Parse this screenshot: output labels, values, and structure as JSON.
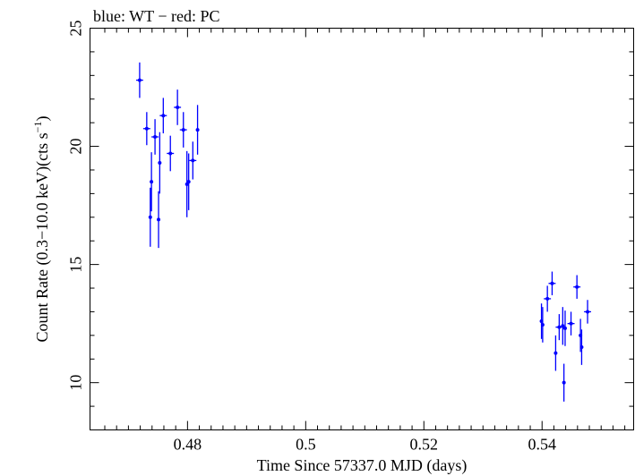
{
  "chart_data": {
    "type": "scatter",
    "title": "blue: WT − red: PC",
    "xlabel": "Time Since 57337.0 MJD (days)",
    "ylabel_main": "Count Rate (0.3−10.0 keV)(cts s",
    "ylabel_sup": "−1",
    "ylabel_end": ")",
    "xlim": [
      0.4635,
      0.5555
    ],
    "ylim": [
      8.0,
      25.0
    ],
    "xticks": [
      {
        "value": 0.48,
        "label": "0.48"
      },
      {
        "value": 0.5,
        "label": "0.5"
      },
      {
        "value": 0.52,
        "label": "0.52"
      },
      {
        "value": 0.54,
        "label": "0.54"
      }
    ],
    "yticks": [
      {
        "value": 10,
        "label": "10"
      },
      {
        "value": 15,
        "label": "15"
      },
      {
        "value": 20,
        "label": "20"
      },
      {
        "value": 25,
        "label": "25"
      }
    ],
    "grid": false,
    "series": [
      {
        "color": "#0000ff",
        "points": [
          {
            "x": 0.4719,
            "y": 22.8,
            "xerr": 0.0006,
            "yerr": 0.75
          },
          {
            "x": 0.4731,
            "y": 20.75,
            "xerr": 0.0006,
            "yerr": 0.7
          },
          {
            "x": 0.4737,
            "y": 17.0,
            "xerr": 0.0002,
            "yerr": 1.25
          },
          {
            "x": 0.4739,
            "y": 18.5,
            "xerr": 0.0002,
            "yerr": 1.25
          },
          {
            "x": 0.4745,
            "y": 20.4,
            "xerr": 0.0006,
            "yerr": 0.75
          },
          {
            "x": 0.4751,
            "y": 16.9,
            "xerr": 0.0002,
            "yerr": 1.2
          },
          {
            "x": 0.4753,
            "y": 19.3,
            "xerr": 0.0002,
            "yerr": 1.3
          },
          {
            "x": 0.4759,
            "y": 21.3,
            "xerr": 0.0006,
            "yerr": 0.75
          },
          {
            "x": 0.4771,
            "y": 19.7,
            "xerr": 0.0006,
            "yerr": 0.75
          },
          {
            "x": 0.4783,
            "y": 21.65,
            "xerr": 0.0006,
            "yerr": 0.75
          },
          {
            "x": 0.4793,
            "y": 20.7,
            "xerr": 0.0006,
            "yerr": 0.75
          },
          {
            "x": 0.4799,
            "y": 18.4,
            "xerr": 0.0002,
            "yerr": 1.4
          },
          {
            "x": 0.4802,
            "y": 18.5,
            "xerr": 0.0002,
            "yerr": 1.2
          },
          {
            "x": 0.4809,
            "y": 19.4,
            "xerr": 0.0006,
            "yerr": 0.8
          },
          {
            "x": 0.4817,
            "y": 20.7,
            "xerr": 0.0002,
            "yerr": 1.05
          },
          {
            "x": 0.5399,
            "y": 12.6,
            "xerr": 0.0002,
            "yerr": 0.75
          },
          {
            "x": 0.5401,
            "y": 12.45,
            "xerr": 0.0002,
            "yerr": 0.75
          },
          {
            "x": 0.5409,
            "y": 13.55,
            "xerr": 0.0006,
            "yerr": 0.55
          },
          {
            "x": 0.5417,
            "y": 14.2,
            "xerr": 0.0006,
            "yerr": 0.5
          },
          {
            "x": 0.5423,
            "y": 11.25,
            "xerr": 0.0002,
            "yerr": 0.75
          },
          {
            "x": 0.5429,
            "y": 12.35,
            "xerr": 0.0006,
            "yerr": 0.55
          },
          {
            "x": 0.5435,
            "y": 12.4,
            "xerr": 0.0002,
            "yerr": 0.8
          },
          {
            "x": 0.5437,
            "y": 10.0,
            "xerr": 0.0002,
            "yerr": 0.8
          },
          {
            "x": 0.5439,
            "y": 12.3,
            "xerr": 0.0002,
            "yerr": 0.75
          },
          {
            "x": 0.5449,
            "y": 12.5,
            "xerr": 0.0006,
            "yerr": 0.5
          },
          {
            "x": 0.5459,
            "y": 14.05,
            "xerr": 0.0006,
            "yerr": 0.5
          },
          {
            "x": 0.5465,
            "y": 12.0,
            "xerr": 0.0002,
            "yerr": 0.7
          },
          {
            "x": 0.5467,
            "y": 11.5,
            "xerr": 0.0002,
            "yerr": 0.75
          },
          {
            "x": 0.5477,
            "y": 13.0,
            "xerr": 0.0006,
            "yerr": 0.5
          }
        ]
      }
    ]
  }
}
